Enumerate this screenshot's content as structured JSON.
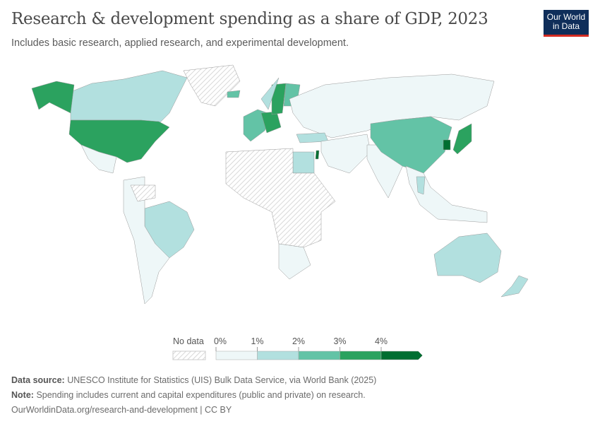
{
  "header": {
    "title": "Research & development spending as a share of GDP, 2023",
    "subtitle": "Includes basic research, applied research, and experimental development.",
    "logo": "Our World in Data"
  },
  "legend": {
    "no_data_label": "No data",
    "ticks": [
      "0%",
      "1%",
      "2%",
      "3%",
      "4%"
    ],
    "bins": [
      {
        "range": "0-1%",
        "color": "#eef7f8"
      },
      {
        "range": "1-2%",
        "color": "#b2e0df"
      },
      {
        "range": "2-3%",
        "color": "#63c3a6"
      },
      {
        "range": "3-4%",
        "color": "#2ba25f"
      },
      {
        "range": ">4%",
        "color": "#006e31"
      }
    ],
    "no_data_color": "#e6e6e6"
  },
  "map_regions": [
    {
      "name": "Canada",
      "bin": "1-2%"
    },
    {
      "name": "United States",
      "bin": "3-4%"
    },
    {
      "name": "Alaska",
      "bin": "3-4%"
    },
    {
      "name": "Mexico",
      "bin": "0-1%"
    },
    {
      "name": "Greenland",
      "bin": "No data"
    },
    {
      "name": "Brazil",
      "bin": "1-2%"
    },
    {
      "name": "South America (other)",
      "bin": "0-1%"
    },
    {
      "name": "Venezuela",
      "bin": "No data"
    },
    {
      "name": "Western Europe",
      "bin": "2-3%"
    },
    {
      "name": "Germany",
      "bin": "3-4%"
    },
    {
      "name": "Sweden",
      "bin": "3-4%"
    },
    {
      "name": "Finland",
      "bin": "2-3%"
    },
    {
      "name": "Norway",
      "bin": "1-2%"
    },
    {
      "name": "Iceland",
      "bin": "2-3%"
    },
    {
      "name": "Russia",
      "bin": "0-1%"
    },
    {
      "name": "Turkey",
      "bin": "1-2%"
    },
    {
      "name": "Israel",
      "bin": ">4%"
    },
    {
      "name": "Egypt",
      "bin": "1-2%"
    },
    {
      "name": "Africa (most)",
      "bin": "No data"
    },
    {
      "name": "Southern Africa",
      "bin": "0-1%"
    },
    {
      "name": "Middle East",
      "bin": "0-1%"
    },
    {
      "name": "India",
      "bin": "0-1%"
    },
    {
      "name": "China",
      "bin": "2-3%"
    },
    {
      "name": "Japan",
      "bin": "3-4%"
    },
    {
      "name": "South Korea",
      "bin": ">4%"
    },
    {
      "name": "Southeast Asia",
      "bin": "0-1%"
    },
    {
      "name": "Thailand",
      "bin": "1-2%"
    },
    {
      "name": "Australia",
      "bin": "1-2%"
    },
    {
      "name": "New Zealand",
      "bin": "1-2%"
    }
  ],
  "footer": {
    "source_label": "Data source:",
    "source": "UNESCO Institute for Statistics (UIS) Bulk Data Service, via World Bank (2025)",
    "note_label": "Note:",
    "note": "Spending includes current and capital expenditures (public and private) on research.",
    "url": "OurWorldinData.org/research-and-development | CC BY"
  }
}
